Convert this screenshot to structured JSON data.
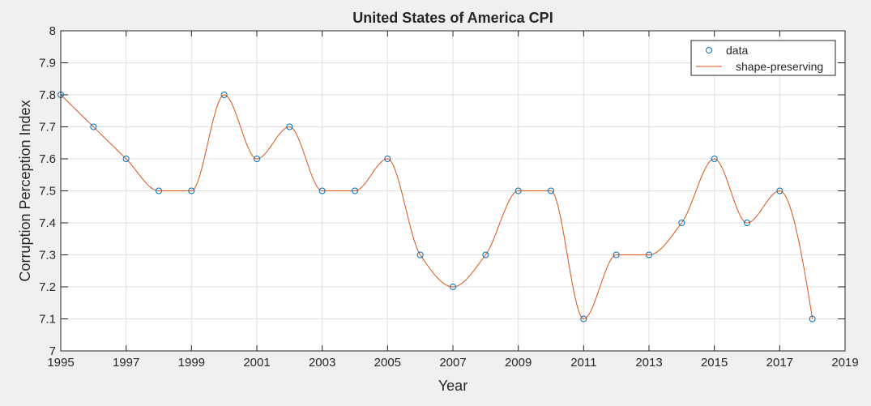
{
  "chart_data": {
    "type": "line",
    "title": "United States of America CPI",
    "xlabel": "Year",
    "ylabel": "Corruption Perception Index",
    "xlim": [
      1995,
      2019
    ],
    "ylim": [
      7,
      8
    ],
    "x_ticks": [
      1995,
      1997,
      1999,
      2001,
      2003,
      2005,
      2007,
      2009,
      2011,
      2013,
      2015,
      2017,
      2019
    ],
    "y_ticks": [
      7,
      7.1,
      7.2,
      7.3,
      7.4,
      7.5,
      7.6,
      7.7,
      7.8,
      7.9,
      8
    ],
    "grid": true,
    "legend_position": "top-right",
    "series": [
      {
        "name": "data",
        "style": "markers",
        "color": "#0072BD",
        "x": [
          1995,
          1996,
          1997,
          1998,
          1999,
          2000,
          2001,
          2002,
          2003,
          2004,
          2005,
          2006,
          2007,
          2008,
          2009,
          2010,
          2011,
          2012,
          2013,
          2014,
          2015,
          2016,
          2017,
          2018
        ],
        "y": [
          7.8,
          7.7,
          7.6,
          7.5,
          7.5,
          7.8,
          7.6,
          7.7,
          7.5,
          7.5,
          7.6,
          7.3,
          7.2,
          7.3,
          7.5,
          7.5,
          7.1,
          7.3,
          7.3,
          7.4,
          7.6,
          7.4,
          7.5,
          7.1
        ]
      },
      {
        "name": "shape-preserving",
        "style": "line",
        "color": "#D95319",
        "interpolation": "pchip"
      }
    ]
  }
}
